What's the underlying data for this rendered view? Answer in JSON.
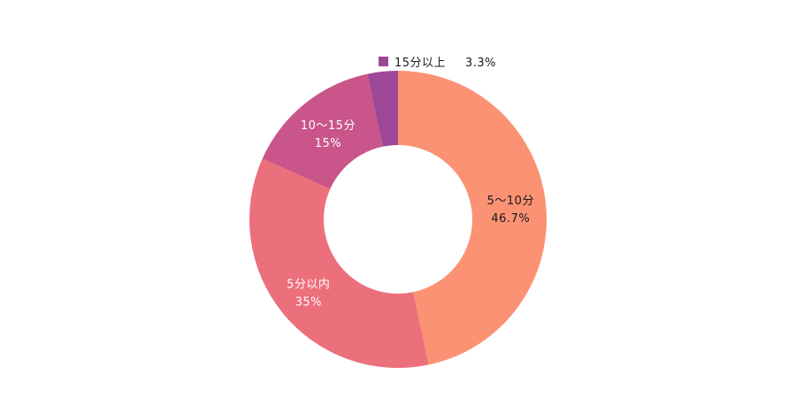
{
  "chart_data": {
    "type": "pie",
    "donut": true,
    "categories": [
      "5〜10分",
      "5分以内",
      "10〜15分",
      "15分以上"
    ],
    "values": [
      46.7,
      35,
      15,
      3.3
    ],
    "value_labels": [
      "46.7%",
      "35%",
      "15%",
      "3.3%"
    ],
    "colors": [
      "#fa9273",
      "#ec6f7c",
      "#c9558a",
      "#9d4896"
    ],
    "label_colors": [
      "#1a1a1a",
      "#ffffff",
      "#ffffff",
      "#1a1a1a"
    ],
    "start": "12 o'clock",
    "direction": "clockwise",
    "legend": {
      "placement": "top",
      "entries": [
        {
          "label": "15分以上",
          "value_label": "3.3%",
          "color": "#9d4896"
        }
      ]
    }
  }
}
